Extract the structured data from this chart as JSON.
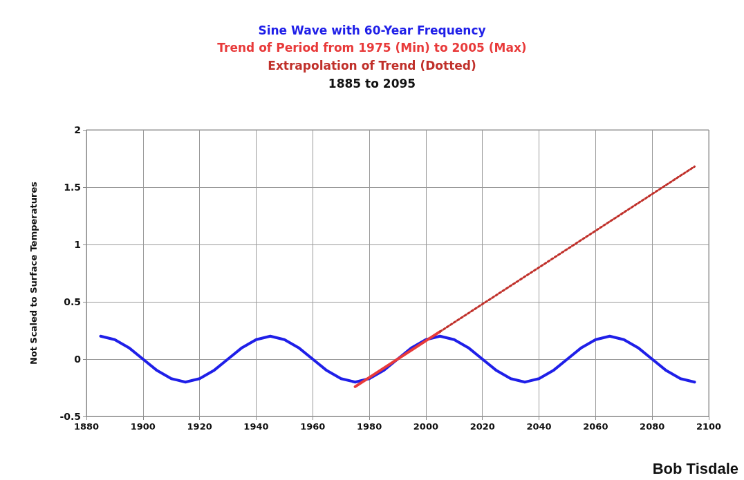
{
  "chart_data": {
    "type": "line",
    "title": "Sine Wave with 60-Year Frequency",
    "subtitle": "Trend of Period from 1975 (Min) to 2005 (Max)\nExtrapolation of Trend (Dotted)\n1885 to 2095",
    "ylabel": "Not Scaled to Surface Temperatures",
    "annotations": [
      "Bob Tisdale"
    ],
    "series": [
      {
        "color": "#1f1fe8",
        "line_style": "solid",
        "x": [
          1885,
          1890,
          1895,
          1900,
          1905,
          1910,
          1915,
          1920,
          1925,
          1930,
          1935,
          1940,
          1945,
          1950,
          1955,
          1960,
          1965,
          1970,
          1975,
          1980,
          1985,
          1990,
          1995,
          2000,
          2005,
          2010,
          2015,
          2020,
          2025,
          2030,
          2035,
          2040,
          2045,
          2050,
          2055,
          2060,
          2065,
          2070,
          2075,
          2080,
          2085,
          2090,
          2095
        ],
        "values": [
          0.2,
          0.17,
          0.1,
          0,
          -0.1,
          -0.17,
          -0.2,
          -0.17,
          -0.1,
          0,
          0.1,
          0.17,
          0.2,
          0.17,
          0.1,
          0,
          -0.1,
          -0.17,
          -0.2,
          -0.17,
          -0.1,
          0,
          0.1,
          0.17,
          0.2,
          0.17,
          0.1,
          0,
          -0.1,
          -0.17,
          -0.2,
          -0.17,
          -0.1,
          0,
          0.1,
          0.17,
          0.2,
          0.17,
          0.1,
          0,
          -0.1,
          -0.17,
          -0.2
        ]
      },
      {
        "color": "#e83a3a",
        "line_style": "solid",
        "x": [
          1975,
          2005
        ],
        "values": [
          -0.24,
          0.24
        ]
      },
      {
        "color": "#c0302a",
        "line_style": "dotted",
        "x": [
          2005,
          2095
        ],
        "values": [
          0.24,
          1.68
        ]
      }
    ],
    "xlim": [
      1880,
      2100
    ],
    "xticks": [
      1880,
      1900,
      1920,
      1940,
      1960,
      1980,
      2000,
      2020,
      2040,
      2060,
      2080,
      2100
    ],
    "ylim": [
      -0.5,
      2
    ],
    "yticks": [
      -0.5,
      0,
      0.5,
      1,
      1.5,
      2
    ],
    "grid": true,
    "marker": "none"
  }
}
